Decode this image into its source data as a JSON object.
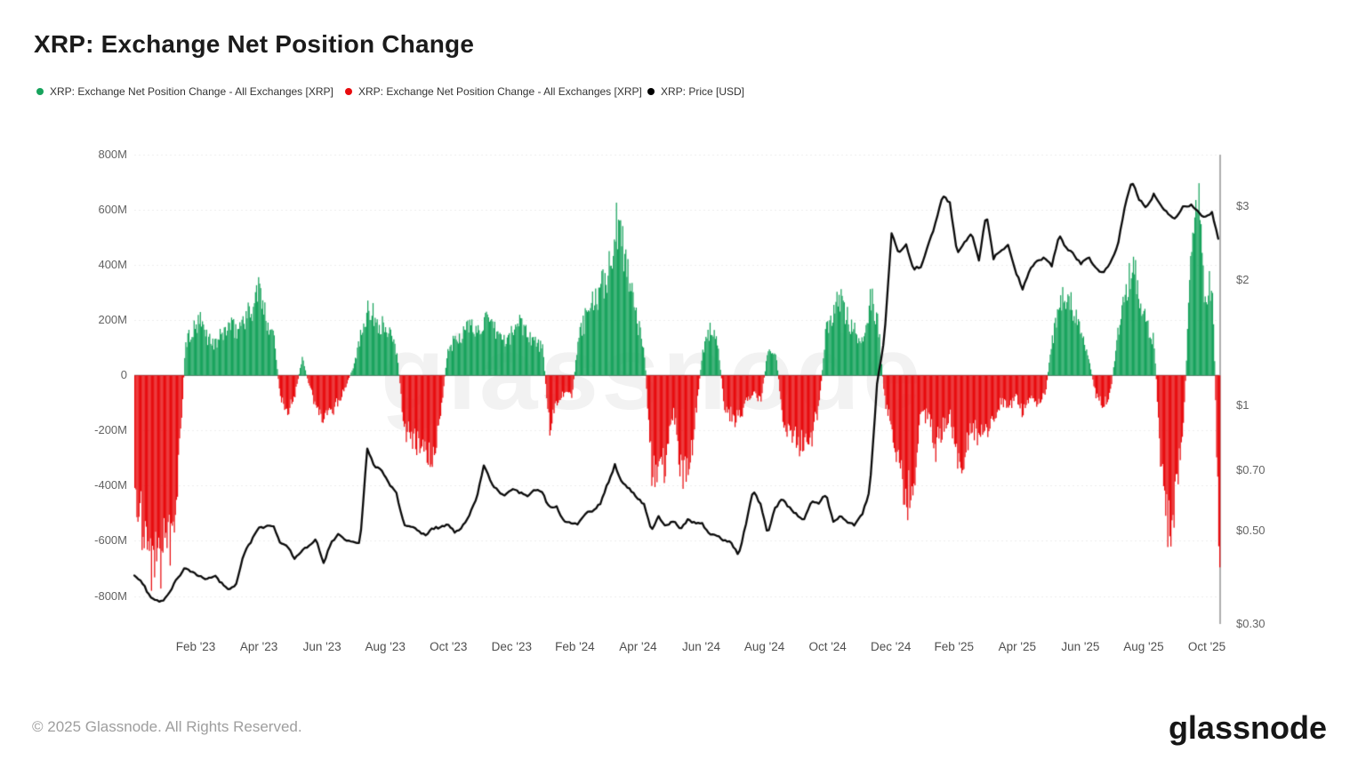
{
  "title": "XRP: Exchange Net Position Change",
  "legend": [
    {
      "label": "XRP: Exchange Net Position Change - All Exchanges [XRP]",
      "dot_color": "#17a35c"
    },
    {
      "label": "XRP: Exchange Net Position Change - All Exchanges [XRP]",
      "dot_color": "#e80b0e"
    },
    {
      "label": "XRP: Price [USD]",
      "dot_color": "#000000"
    }
  ],
  "watermark": "glassnode",
  "footer": {
    "copyright": "© 2025 Glassnode. All Rights Reserved.",
    "logo_text": "glassnode"
  },
  "colors": {
    "bar_positive": "#17a35c",
    "bar_negative": "#e80b0e",
    "price_line": "#0a0a0a",
    "gridline": "#ededed",
    "zero_line": "#5a5a5a",
    "right_edge_line": "#9a9a9a"
  },
  "chart_data": {
    "type": "combo",
    "title": "XRP: Exchange Net Position Change",
    "start_date": "2022-12-05",
    "point_interval_days": 7,
    "left_axis": {
      "unit": "XRP",
      "ticks": [
        {
          "label": "800M",
          "value": 800
        },
        {
          "label": "600M",
          "value": 600
        },
        {
          "label": "400M",
          "value": 400
        },
        {
          "label": "200M",
          "value": 200
        },
        {
          "label": "0",
          "value": 0
        },
        {
          "label": "-200M",
          "value": -200
        },
        {
          "label": "-400M",
          "value": -400
        },
        {
          "label": "-600M",
          "value": -600
        },
        {
          "label": "-800M",
          "value": -800
        }
      ],
      "range_millions": [
        -800,
        800
      ]
    },
    "right_axis": {
      "unit": "USD",
      "scale": "log",
      "ticks": [
        {
          "label": "$3",
          "value": 3
        },
        {
          "label": "$2",
          "value": 2
        },
        {
          "label": "$1",
          "value": 1
        },
        {
          "label": "$0.70",
          "value": 0.7
        },
        {
          "label": "$0.50",
          "value": 0.5
        },
        {
          "label": "$0.30",
          "value": 0.3
        }
      ]
    },
    "x_axis": {
      "tick_labels": [
        "Feb '23",
        "Apr '23",
        "Jun '23",
        "Aug '23",
        "Oct '23",
        "Dec '23",
        "Feb '24",
        "Apr '24",
        "Jun '24",
        "Aug '24",
        "Oct '24",
        "Dec '24",
        "Feb '25",
        "Apr '25",
        "Jun '25",
        "Aug '25",
        "Oct '25"
      ]
    },
    "series": [
      {
        "name": "XRP: Exchange Net Position Change - All Exchanges [XRP]",
        "type": "bar",
        "unit": "million XRP per day (weekly estimates)",
        "color_positive": "#17a35c",
        "color_negative": "#e80b0e",
        "values": [
          -430,
          -520,
          -660,
          -730,
          -580,
          -610,
          -330,
          120,
          160,
          190,
          140,
          110,
          150,
          180,
          160,
          210,
          230,
          320,
          200,
          170,
          -90,
          -130,
          -70,
          60,
          -40,
          -120,
          -170,
          -140,
          -90,
          -40,
          30,
          140,
          260,
          200,
          180,
          150,
          80,
          -190,
          -230,
          -250,
          -270,
          -300,
          -130,
          90,
          130,
          150,
          180,
          160,
          200,
          170,
          150,
          120,
          160,
          200,
          150,
          120,
          100,
          -200,
          -90,
          -60,
          -80,
          140,
          210,
          270,
          300,
          380,
          520,
          480,
          360,
          200,
          80,
          -350,
          -380,
          -300,
          -130,
          -330,
          -360,
          -150,
          90,
          160,
          130,
          -120,
          -150,
          -160,
          -100,
          -60,
          -90,
          100,
          90,
          -160,
          -200,
          -240,
          -260,
          -220,
          -100,
          180,
          230,
          280,
          200,
          160,
          120,
          290,
          210,
          -90,
          -190,
          -360,
          -460,
          -370,
          -140,
          -150,
          -260,
          -180,
          -130,
          -340,
          -280,
          -190,
          -230,
          -200,
          -150,
          -90,
          -120,
          -70,
          -140,
          -80,
          -100,
          -70,
          120,
          250,
          310,
          220,
          140,
          60,
          -70,
          -110,
          -60,
          150,
          300,
          410,
          260,
          180,
          120,
          -350,
          -560,
          -430,
          -180,
          380,
          640,
          280,
          360,
          -700
        ]
      },
      {
        "name": "XRP: Price [USD]",
        "type": "line",
        "unit": "USD",
        "color": "#0a0a0a",
        "values": [
          0.39,
          0.38,
          0.352,
          0.34,
          0.342,
          0.36,
          0.388,
          0.408,
          0.4,
          0.39,
          0.382,
          0.392,
          0.375,
          0.362,
          0.372,
          0.44,
          0.47,
          0.508,
          0.512,
          0.518,
          0.468,
          0.462,
          0.428,
          0.45,
          0.462,
          0.478,
          0.418,
          0.468,
          0.492,
          0.478,
          0.47,
          0.47,
          0.79,
          0.715,
          0.7,
          0.65,
          0.615,
          0.52,
          0.512,
          0.5,
          0.488,
          0.508,
          0.51,
          0.52,
          0.498,
          0.51,
          0.548,
          0.6,
          0.72,
          0.655,
          0.62,
          0.608,
          0.632,
          0.618,
          0.608,
          0.628,
          0.62,
          0.568,
          0.57,
          0.528,
          0.52,
          0.522,
          0.552,
          0.558,
          0.582,
          0.648,
          0.72,
          0.65,
          0.632,
          0.6,
          0.582,
          0.502,
          0.542,
          0.512,
          0.528,
          0.508,
          0.532,
          0.522,
          0.52,
          0.492,
          0.488,
          0.475,
          0.468,
          0.438,
          0.52,
          0.628,
          0.578,
          0.492,
          0.568,
          0.598,
          0.568,
          0.548,
          0.532,
          0.588,
          0.585,
          0.612,
          0.528,
          0.545,
          0.522,
          0.518,
          0.552,
          0.625,
          1.12,
          1.45,
          2.58,
          2.32,
          2.42,
          2.12,
          2.15,
          2.4,
          2.72,
          3.18,
          3.05,
          2.32,
          2.45,
          2.58,
          2.22,
          2.88,
          2.25,
          2.35,
          2.42,
          2.1,
          1.9,
          2.12,
          2.22,
          2.25,
          2.16,
          2.56,
          2.38,
          2.3,
          2.18,
          2.26,
          2.15,
          2.06,
          2.2,
          2.38,
          2.98,
          3.44,
          3.12,
          2.96,
          3.2,
          3.0,
          2.88,
          2.8,
          2.98,
          3.02,
          2.94,
          2.8,
          2.9,
          2.45
        ]
      }
    ]
  }
}
